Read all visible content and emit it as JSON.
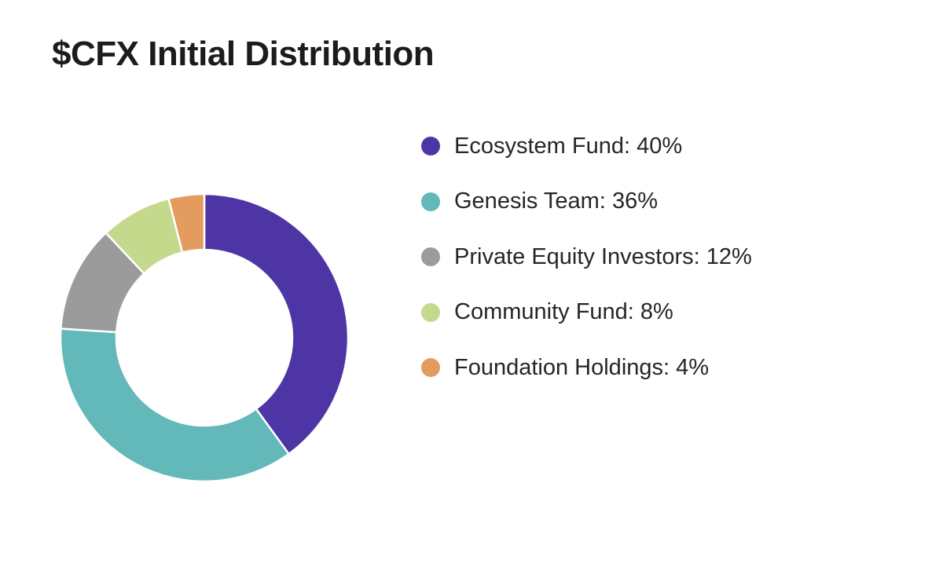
{
  "chart_data": {
    "type": "pie",
    "variant": "donut",
    "title": "$CFX Initial Distribution",
    "categories": [
      "Ecosystem Fund",
      "Genesis Team",
      "Private Equity Investors",
      "Community Fund",
      "Foundation Holdings"
    ],
    "values": [
      40,
      36,
      12,
      8,
      4
    ],
    "unit": "%",
    "colors": [
      "#4e35a6",
      "#63b8ba",
      "#9b9b9b",
      "#c5d98d",
      "#e49b5e"
    ],
    "legend": {
      "position": "right",
      "entries": [
        "Ecosystem Fund: 40%",
        "Genesis Team: 36%",
        "Private Equity Investors: 12%",
        "Community Fund: 8%",
        "Foundation Holdings: 4%"
      ]
    }
  }
}
